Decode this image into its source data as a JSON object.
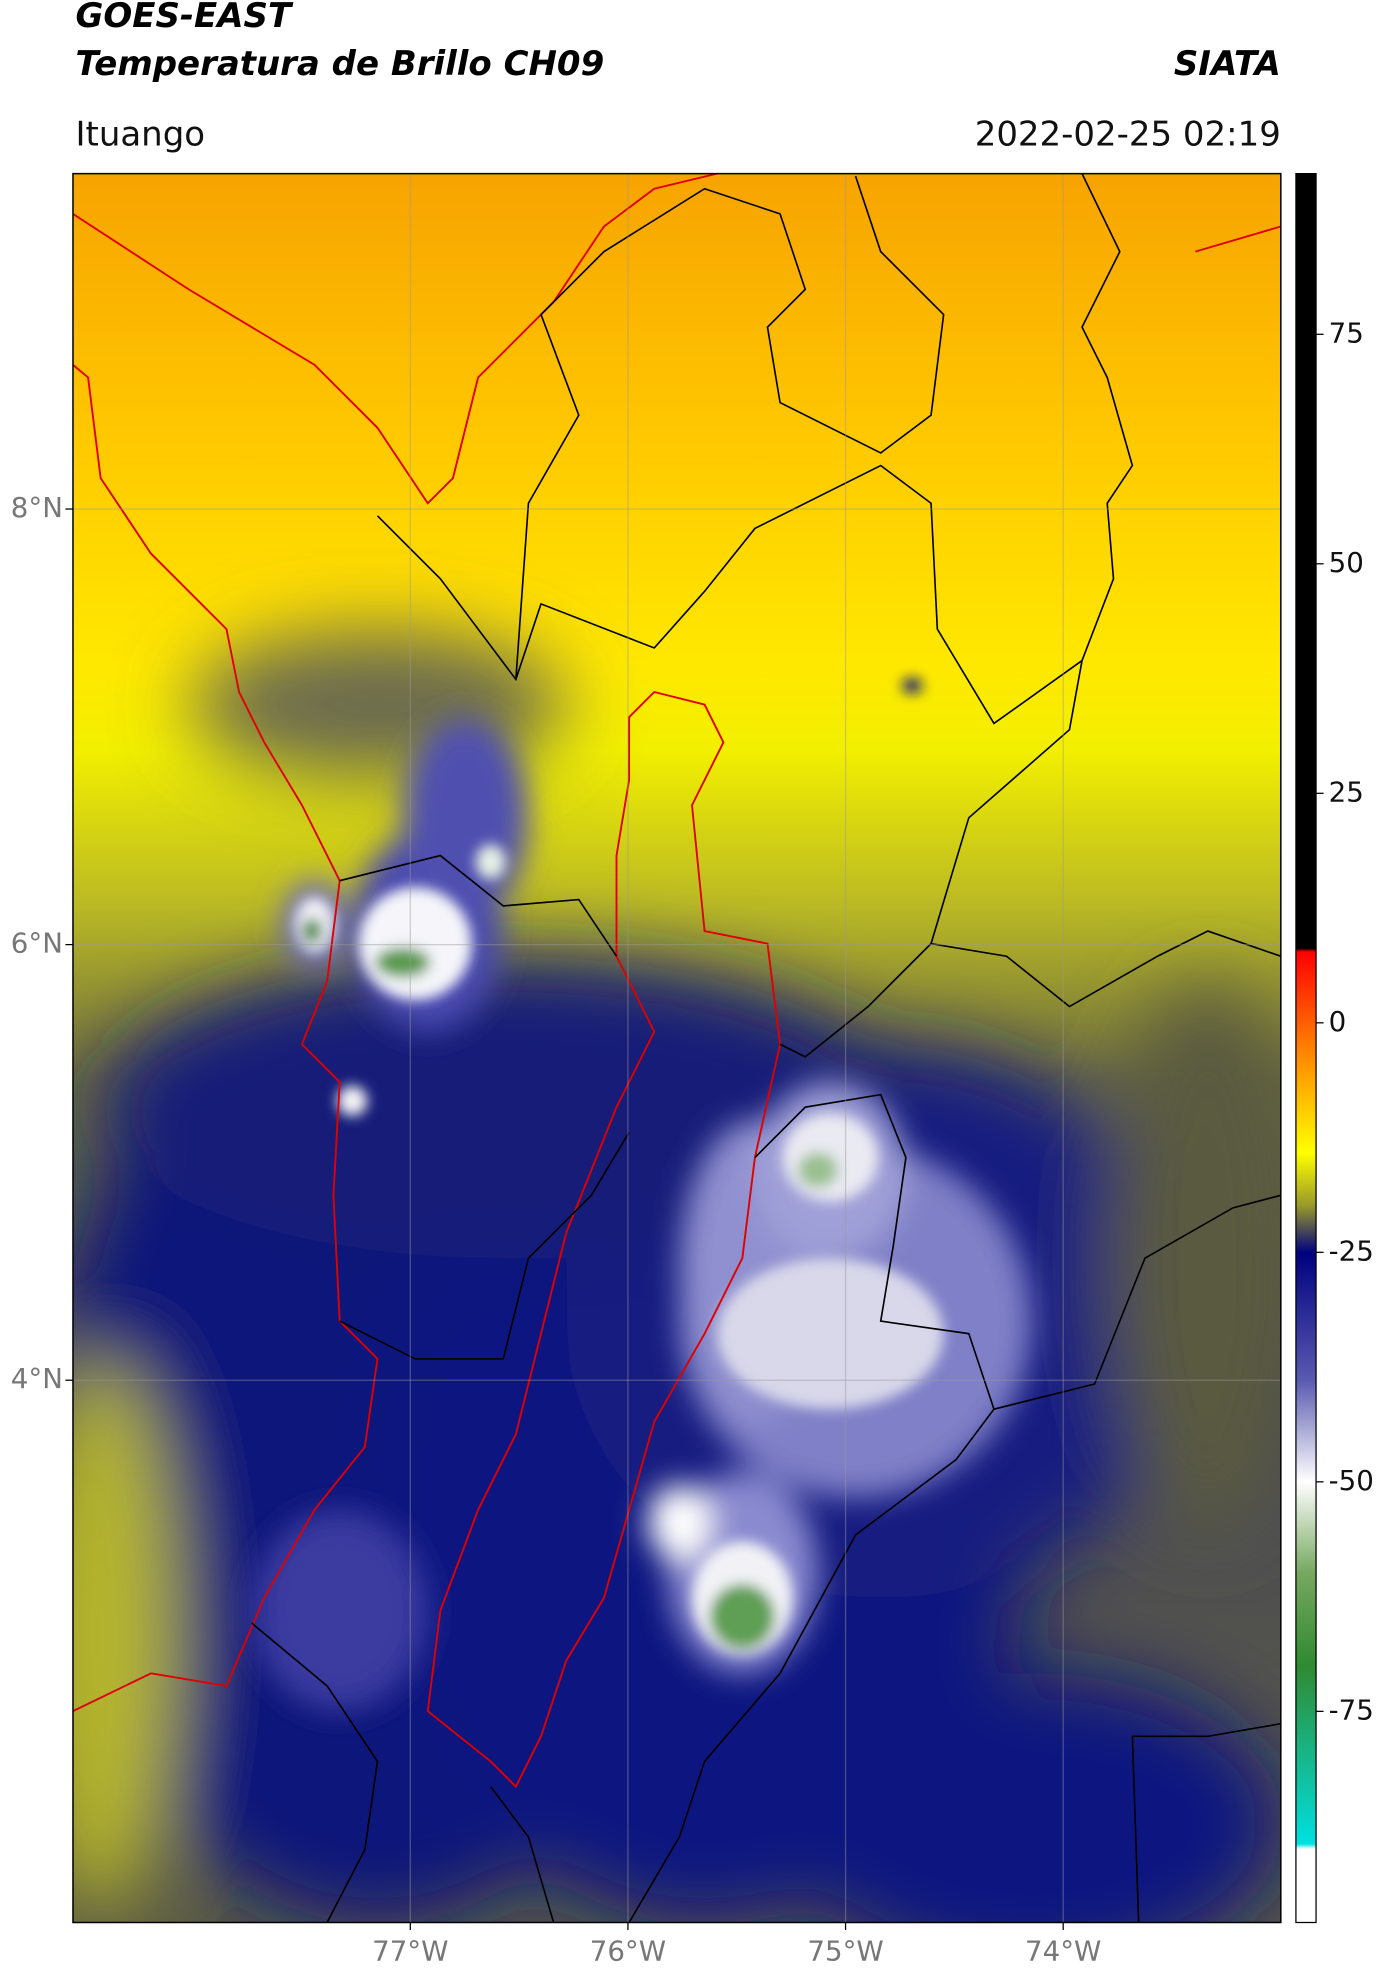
{
  "header": {
    "title": "GOES-EAST",
    "subtitle": "Temperatura de Brillo CH09",
    "brand": "SIATA",
    "location": "Ituango",
    "datetime": "2022-02-25 02:19"
  },
  "map": {
    "xlim": [
      -78.55,
      -73.0
    ],
    "ylim": [
      1.51,
      9.54
    ],
    "xticks": [
      {
        "value": -77,
        "label": "77°W"
      },
      {
        "value": -76,
        "label": "76°W"
      },
      {
        "value": -75,
        "label": "75°W"
      },
      {
        "value": -74,
        "label": "74°W"
      }
    ],
    "yticks": [
      {
        "value": 8,
        "label": "8°N"
      },
      {
        "value": 6,
        "label": "6°N"
      },
      {
        "value": 4,
        "label": "4°N"
      }
    ],
    "grid": true
  },
  "colorbar": {
    "lim": [
      -98,
      92.5
    ],
    "ticks": [
      75,
      50,
      25,
      0,
      -25,
      -50,
      -75
    ]
  }
}
